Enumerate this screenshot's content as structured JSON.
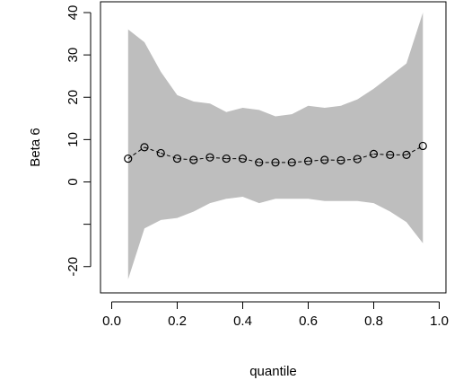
{
  "chart_data": {
    "type": "line",
    "title": "",
    "xlabel": "quantile",
    "ylabel": "Beta 6",
    "xlim": [
      0.0,
      1.0
    ],
    "ylim": [
      -25,
      40
    ],
    "x_ticks": [
      0.0,
      0.2,
      0.4,
      0.6,
      0.8,
      1.0
    ],
    "x_tick_labels": [
      "0.0",
      "0.2",
      "0.4",
      "0.6",
      "0.8",
      "1.0"
    ],
    "y_ticks": [
      -20,
      -10,
      0,
      10,
      20,
      30,
      40
    ],
    "y_tick_labels": [
      "-20",
      "",
      "0",
      "10",
      "20",
      "30",
      "40"
    ],
    "grid": false,
    "legend": "none",
    "series": [
      {
        "values": [
          5.5,
          8.2,
          6.8,
          5.5,
          5.2,
          5.8,
          5.5,
          5.5,
          4.6,
          4.6,
          4.6,
          4.9,
          5.2,
          5.1,
          5.4,
          6.6,
          6.4,
          6.4,
          8.5
        ],
        "x": [
          0.05,
          0.1,
          0.15,
          0.2,
          0.25,
          0.3,
          0.35,
          0.4,
          0.45,
          0.5,
          0.55,
          0.6,
          0.65,
          0.7,
          0.75,
          0.8,
          0.85,
          0.9,
          0.95
        ],
        "marker": "open-circle",
        "line_style": "dashed",
        "color": "#000000"
      }
    ],
    "band": {
      "x": [
        0.05,
        0.1,
        0.15,
        0.2,
        0.25,
        0.3,
        0.35,
        0.4,
        0.45,
        0.5,
        0.55,
        0.6,
        0.65,
        0.7,
        0.75,
        0.8,
        0.85,
        0.9,
        0.95
      ],
      "upper": [
        36.0,
        33.0,
        26.0,
        20.5,
        19.0,
        18.5,
        16.5,
        17.5,
        17.0,
        15.5,
        16.0,
        18.0,
        17.5,
        18.0,
        19.5,
        22.0,
        25.0,
        28.0,
        40.0
      ],
      "lower": [
        -23.0,
        -11.0,
        -9.0,
        -8.5,
        -7.0,
        -5.0,
        -4.0,
        -3.5,
        -5.0,
        -4.0,
        -4.0,
        -4.0,
        -4.5,
        -4.5,
        -4.5,
        -5.0,
        -7.0,
        -9.5,
        -14.5
      ],
      "color": "#bebebe"
    }
  }
}
